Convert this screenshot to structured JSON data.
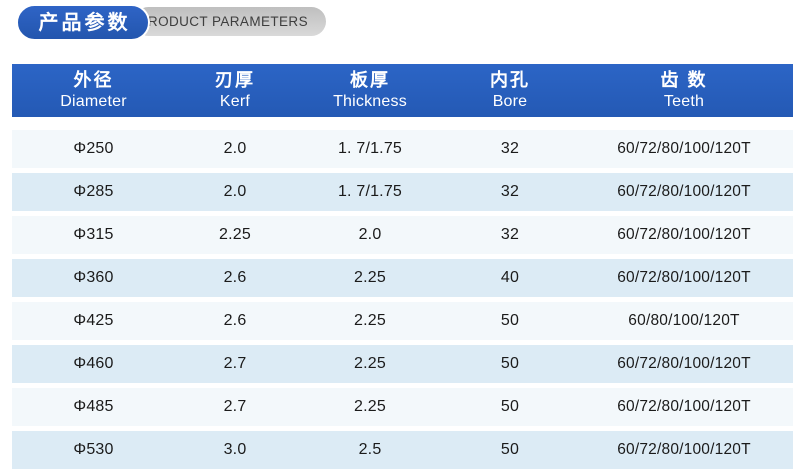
{
  "badge": {
    "title_cn": "产品参数",
    "title_en": "PRODUCT PARAMETERS"
  },
  "table": {
    "columns": [
      {
        "cn": "外径",
        "en": "Diameter"
      },
      {
        "cn": "刃厚",
        "en": "Kerf"
      },
      {
        "cn": "板厚",
        "en": "Thickness"
      },
      {
        "cn": "内孔",
        "en": "Bore"
      },
      {
        "cn": "齿 数",
        "en": "Teeth"
      }
    ],
    "rows": [
      [
        "Φ250",
        "2.0",
        "1. 7/1.75",
        "32",
        "60/72/80/100/120T"
      ],
      [
        "Φ285",
        "2.0",
        "1. 7/1.75",
        "32",
        "60/72/80/100/120T"
      ],
      [
        "Φ315",
        "2.25",
        "2.0",
        "32",
        "60/72/80/100/120T"
      ],
      [
        "Φ360",
        "2.6",
        "2.25",
        "40",
        "60/72/80/100/120T"
      ],
      [
        "Φ425",
        "2.6",
        "2.25",
        "50",
        "60/80/100/120T"
      ],
      [
        "Φ460",
        "2.7",
        "2.25",
        "50",
        "60/72/80/100/120T"
      ],
      [
        "Φ485",
        "2.7",
        "2.25",
        "50",
        "60/72/80/100/120T"
      ],
      [
        "Φ530",
        "3.0",
        "2.5",
        "50",
        "60/72/80/100/120T"
      ]
    ]
  },
  "colors": {
    "header_blue": "#2459b4",
    "badge_blue": "#2356ae",
    "badge_gray": "#bfbfbf",
    "badge_gray_text": "#3e3e3e",
    "row_light": "#f3f8fb",
    "row_blue": "#dcebf5",
    "text_dark": "#1b1b1b"
  }
}
